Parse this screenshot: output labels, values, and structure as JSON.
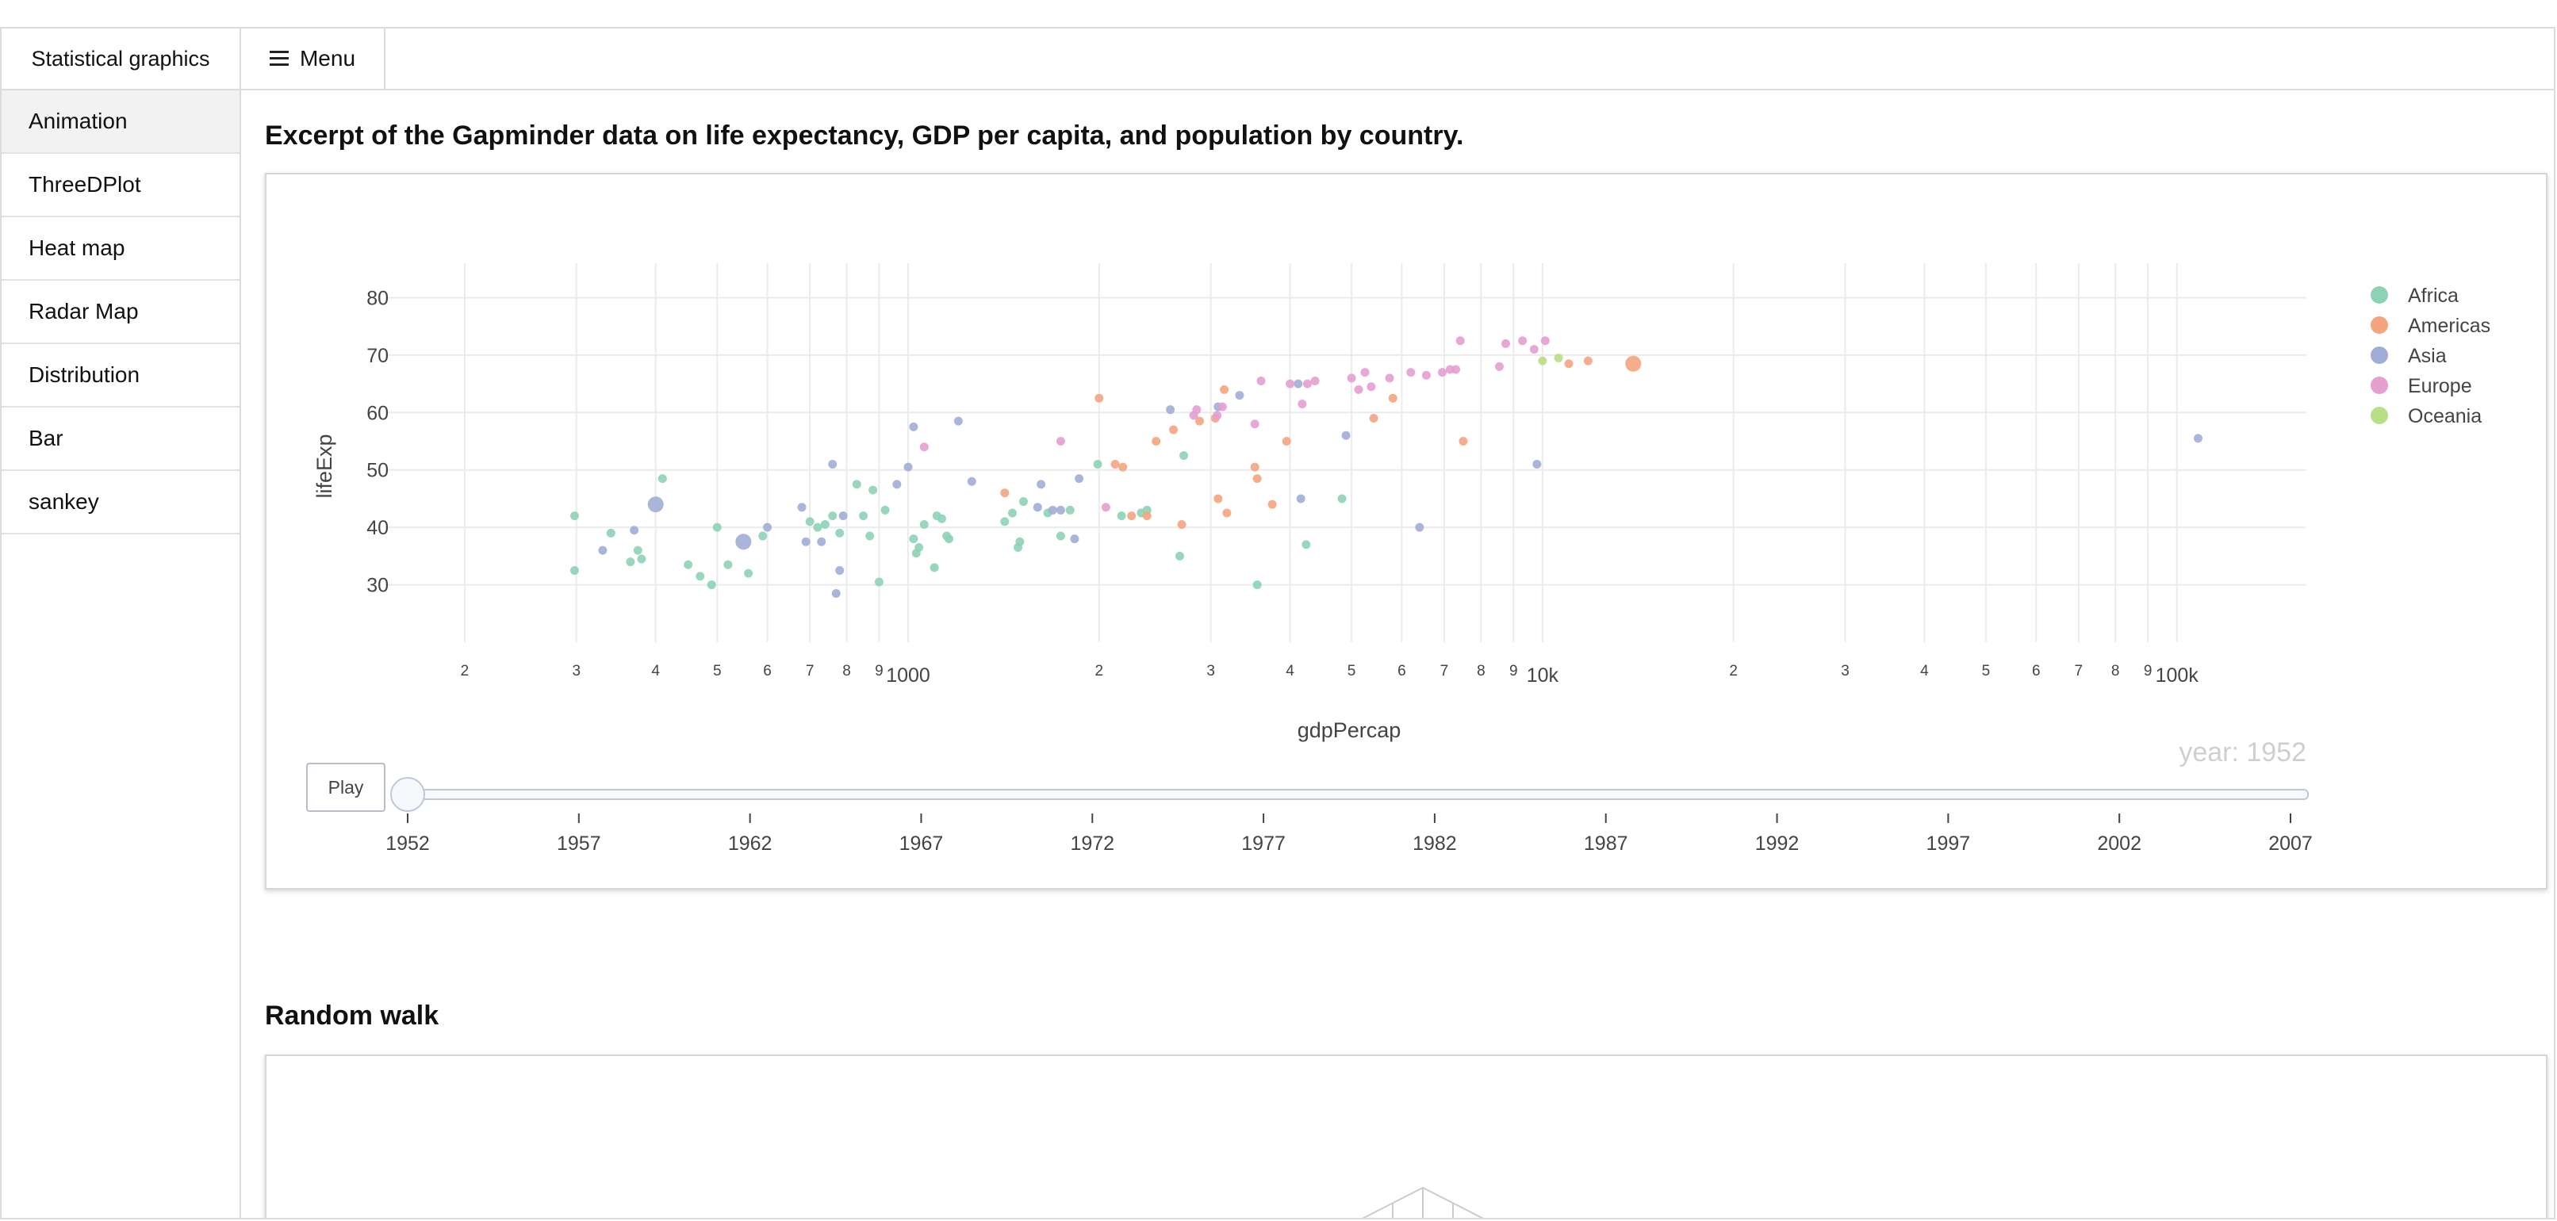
{
  "app": {
    "brand": "Statistical graphics",
    "menu_label": "Menu"
  },
  "sidebar": {
    "items": [
      {
        "label": "Animation",
        "active": true
      },
      {
        "label": "ThreeDPlot",
        "active": false
      },
      {
        "label": "Heat map",
        "active": false
      },
      {
        "label": "Radar Map",
        "active": false
      },
      {
        "label": "Distribution",
        "active": false
      },
      {
        "label": "Bar",
        "active": false
      },
      {
        "label": "sankey",
        "active": false
      }
    ]
  },
  "sections": {
    "gapminder_title": "Excerpt of the Gapminder data on life expectancy, GDP per capita, and population by country.",
    "random_walk_title": "Random walk"
  },
  "colors": {
    "Africa": "#8dd3b5",
    "Americas": "#f4a57f",
    "Asia": "#a0aed6",
    "Europe": "#e49fd0",
    "Oceania": "#b9df84"
  },
  "animation": {
    "play_label": "Play",
    "year_label": "year: 1952",
    "years": [
      "1952",
      "1957",
      "1962",
      "1967",
      "1972",
      "1977",
      "1982",
      "1987",
      "1992",
      "1997",
      "2002",
      "2007"
    ]
  },
  "chart_data": {
    "type": "scatter",
    "xlabel": "gdpPercap",
    "ylabel": "lifeExp",
    "xscale": "log",
    "xlim": [
      150,
      160000
    ],
    "ylim": [
      20,
      86
    ],
    "x_tick_labels": [
      {
        "value": 200,
        "label": "2"
      },
      {
        "value": 300,
        "label": "3"
      },
      {
        "value": 400,
        "label": "4"
      },
      {
        "value": 500,
        "label": "5"
      },
      {
        "value": 600,
        "label": "6"
      },
      {
        "value": 700,
        "label": "7"
      },
      {
        "value": 800,
        "label": "8"
      },
      {
        "value": 900,
        "label": "9"
      },
      {
        "value": 1000,
        "label": "1000"
      },
      {
        "value": 2000,
        "label": "2"
      },
      {
        "value": 3000,
        "label": "3"
      },
      {
        "value": 4000,
        "label": "4"
      },
      {
        "value": 5000,
        "label": "5"
      },
      {
        "value": 6000,
        "label": "6"
      },
      {
        "value": 7000,
        "label": "7"
      },
      {
        "value": 8000,
        "label": "8"
      },
      {
        "value": 9000,
        "label": "9"
      },
      {
        "value": 10000,
        "label": "10k"
      },
      {
        "value": 20000,
        "label": "2"
      },
      {
        "value": 30000,
        "label": "3"
      },
      {
        "value": 40000,
        "label": "4"
      },
      {
        "value": 50000,
        "label": "5"
      },
      {
        "value": 60000,
        "label": "6"
      },
      {
        "value": 70000,
        "label": "7"
      },
      {
        "value": 80000,
        "label": "8"
      },
      {
        "value": 90000,
        "label": "9"
      },
      {
        "value": 100000,
        "label": "100k"
      }
    ],
    "y_ticks": [
      30,
      40,
      50,
      60,
      70,
      80
    ],
    "grid": true,
    "legend_position": "top-right",
    "legend": [
      "Africa",
      "Americas",
      "Asia",
      "Europe",
      "Oceania"
    ],
    "series": [
      {
        "name": "Africa",
        "points": [
          [
            298,
            42.0,
            1
          ],
          [
            298,
            32.5,
            1
          ],
          [
            340,
            39.0,
            1
          ],
          [
            365,
            34.0,
            1
          ],
          [
            375,
            36.0,
            1
          ],
          [
            380,
            34.5,
            1
          ],
          [
            410,
            48.5,
            1
          ],
          [
            450,
            33.5,
            1
          ],
          [
            470,
            31.5,
            1
          ],
          [
            490,
            30.0,
            1
          ],
          [
            500,
            40.0,
            1
          ],
          [
            520,
            33.5,
            1
          ],
          [
            560,
            32.0,
            1
          ],
          [
            590,
            38.5,
            1
          ],
          [
            700,
            41.0,
            1
          ],
          [
            720,
            40.0,
            1
          ],
          [
            740,
            40.5,
            1
          ],
          [
            760,
            42.0,
            1
          ],
          [
            780,
            39.0,
            1
          ],
          [
            830,
            47.5,
            1
          ],
          [
            850,
            42.0,
            1
          ],
          [
            870,
            38.5,
            1
          ],
          [
            880,
            46.5,
            1
          ],
          [
            900,
            30.5,
            1
          ],
          [
            920,
            43.0,
            1
          ],
          [
            1020,
            38.0,
            1
          ],
          [
            1030,
            35.5,
            1
          ],
          [
            1040,
            36.5,
            1
          ],
          [
            1060,
            40.5,
            1
          ],
          [
            1100,
            33.0,
            1
          ],
          [
            1110,
            42.0,
            1
          ],
          [
            1130,
            41.5,
            1
          ],
          [
            1150,
            38.5,
            1
          ],
          [
            1160,
            38.0,
            1
          ],
          [
            1420,
            41.0,
            1
          ],
          [
            1460,
            42.5,
            1
          ],
          [
            1490,
            36.5,
            1
          ],
          [
            1500,
            37.5,
            1
          ],
          [
            1520,
            44.5,
            1
          ],
          [
            1660,
            42.5,
            1
          ],
          [
            1740,
            38.5,
            1
          ],
          [
            1800,
            43.0,
            1
          ],
          [
            1990,
            51.0,
            1
          ],
          [
            2170,
            42.0,
            1
          ],
          [
            2330,
            42.5,
            1
          ],
          [
            2380,
            43.0,
            1
          ],
          [
            2680,
            35.0,
            1
          ],
          [
            2720,
            52.5,
            1
          ],
          [
            3550,
            30.0,
            1
          ],
          [
            4240,
            37.0,
            1
          ],
          [
            4830,
            45.0,
            1
          ]
        ]
      },
      {
        "name": "Americas",
        "points": [
          [
            1420,
            46.0,
            1
          ],
          [
            2000,
            62.5,
            1
          ],
          [
            2120,
            51.0,
            1
          ],
          [
            2180,
            50.5,
            1
          ],
          [
            2250,
            42.0,
            1
          ],
          [
            2380,
            42.0,
            1
          ],
          [
            2460,
            55.0,
            1
          ],
          [
            2620,
            57.0,
            1
          ],
          [
            2700,
            40.5,
            1
          ],
          [
            2880,
            58.5,
            1
          ],
          [
            3050,
            59.0,
            1
          ],
          [
            3080,
            45.0,
            1
          ],
          [
            3150,
            64.0,
            1
          ],
          [
            3180,
            42.5,
            1
          ],
          [
            3520,
            50.5,
            1
          ],
          [
            3550,
            48.5,
            1
          ],
          [
            3750,
            44.0,
            1
          ],
          [
            3950,
            55.0,
            1
          ],
          [
            5420,
            59.0,
            1
          ],
          [
            5810,
            62.5,
            1
          ],
          [
            7500,
            55.0,
            1
          ],
          [
            11000,
            68.5,
            1
          ],
          [
            11800,
            69.0,
            1
          ],
          [
            13900,
            68.5,
            2
          ]
        ]
      },
      {
        "name": "Asia",
        "points": [
          [
            330,
            36.0,
            1
          ],
          [
            370,
            39.5,
            1
          ],
          [
            400,
            44.0,
            2
          ],
          [
            550,
            37.5,
            2
          ],
          [
            600,
            40.0,
            1
          ],
          [
            680,
            43.5,
            1
          ],
          [
            690,
            37.5,
            1
          ],
          [
            730,
            37.5,
            1
          ],
          [
            760,
            51.0,
            1
          ],
          [
            770,
            28.5,
            1
          ],
          [
            780,
            32.5,
            1
          ],
          [
            790,
            42.0,
            1
          ],
          [
            960,
            47.5,
            1
          ],
          [
            1000,
            50.5,
            1
          ],
          [
            1020,
            57.5,
            1
          ],
          [
            1200,
            58.5,
            1
          ],
          [
            1260,
            48.0,
            1
          ],
          [
            1600,
            43.5,
            1
          ],
          [
            1620,
            47.5,
            1
          ],
          [
            1690,
            43.0,
            1
          ],
          [
            1740,
            43.0,
            1
          ],
          [
            1830,
            38.0,
            1
          ],
          [
            1860,
            48.5,
            1
          ],
          [
            2590,
            60.5,
            1
          ],
          [
            3080,
            61.0,
            1
          ],
          [
            3330,
            63.0,
            1
          ],
          [
            4120,
            65.0,
            1
          ],
          [
            4160,
            45.0,
            1
          ],
          [
            4900,
            56.0,
            1
          ],
          [
            6400,
            40.0,
            1
          ],
          [
            9800,
            51.0,
            1
          ],
          [
            108000,
            55.5,
            1
          ]
        ]
      },
      {
        "name": "Europe",
        "points": [
          [
            1060,
            54.0,
            1
          ],
          [
            1740,
            55.0,
            1
          ],
          [
            2050,
            43.5,
            1
          ],
          [
            2820,
            59.5,
            1
          ],
          [
            2850,
            60.5,
            1
          ],
          [
            3070,
            59.5,
            1
          ],
          [
            3130,
            61.0,
            1
          ],
          [
            3520,
            58.0,
            1
          ],
          [
            3600,
            65.5,
            1
          ],
          [
            4000,
            65.0,
            1
          ],
          [
            4180,
            61.5,
            1
          ],
          [
            4260,
            65.0,
            1
          ],
          [
            4380,
            65.5,
            1
          ],
          [
            5000,
            66.0,
            1
          ],
          [
            5130,
            64.0,
            1
          ],
          [
            5250,
            67.0,
            1
          ],
          [
            5370,
            64.5,
            1
          ],
          [
            5740,
            66.0,
            1
          ],
          [
            6200,
            67.0,
            1
          ],
          [
            6560,
            66.5,
            1
          ],
          [
            6950,
            67.0,
            1
          ],
          [
            7150,
            67.5,
            1
          ],
          [
            7300,
            67.5,
            1
          ],
          [
            7420,
            72.5,
            1
          ],
          [
            8550,
            68.0,
            1
          ],
          [
            8750,
            72.0,
            1
          ],
          [
            9300,
            72.5,
            1
          ],
          [
            9700,
            71.0,
            1
          ],
          [
            10100,
            72.5,
            1
          ]
        ]
      },
      {
        "name": "Oceania",
        "points": [
          [
            10000,
            69.0,
            1
          ],
          [
            10600,
            69.5,
            1
          ]
        ]
      }
    ]
  }
}
